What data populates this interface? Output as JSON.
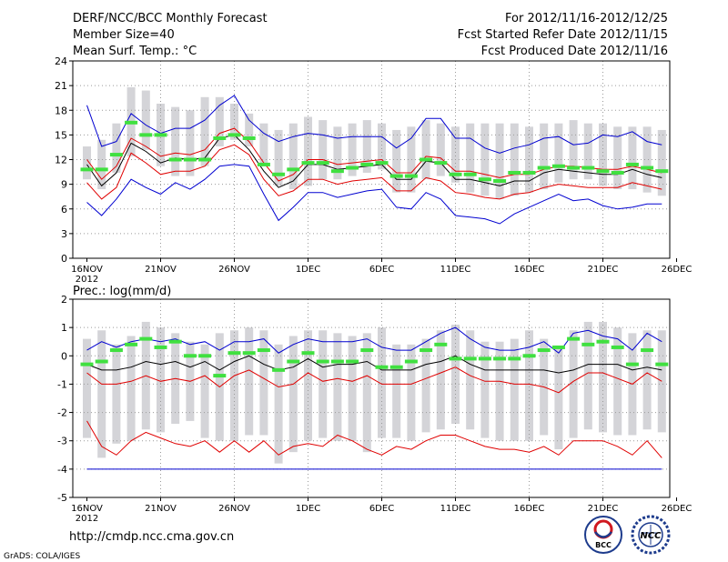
{
  "header": {
    "title": "DERF/NCC/BCC Monthly Forecast",
    "member_size": "Member Size=40",
    "period": "For 2012/11/16-2012/12/25",
    "fcst_started": "Fcst Started Refer Date 2012/11/15",
    "fcst_produced": "Fcst Produced Date 2012/11/16"
  },
  "footer": {
    "url": "http://cmdp.ncc.cma.gov.cn",
    "grads": "GrADS: COLA/IGES",
    "logo_bcc": "BCC",
    "logo_ncc": "NCC"
  },
  "colors": {
    "box": "#d4d4d8",
    "obs": "#40e040",
    "mean": "#000000",
    "inner": "#e00000",
    "outer": "#0000d0",
    "grid": "#9a9a9a"
  },
  "chart_data": [
    {
      "type": "line",
      "title": "Mean Surf. Temp.: °C",
      "ylim": [
        0,
        24
      ],
      "yticks": [
        "24",
        "21",
        "18",
        "15",
        "12",
        "9",
        "6",
        "3",
        "0"
      ],
      "xticks": [
        "16NOV",
        "21NOV",
        "26NOV",
        "1DEC",
        "6DEC",
        "11DEC",
        "16DEC",
        "21DEC",
        "26DEC"
      ],
      "xtick_year": "2012",
      "x": [
        1,
        2,
        3,
        4,
        5,
        6,
        7,
        8,
        9,
        10,
        11,
        12,
        13,
        14,
        15,
        16,
        17,
        18,
        19,
        20,
        21,
        22,
        23,
        24,
        25,
        26,
        27,
        28,
        29,
        30,
        31,
        32,
        33,
        34,
        35,
        36,
        37,
        38,
        39,
        40
      ],
      "box_low": [
        9.6,
        8.4,
        10.4,
        12.4,
        13.2,
        11.2,
        10.0,
        10.0,
        11.2,
        13.6,
        14.4,
        13.6,
        11.2,
        8.8,
        8.4,
        8.8,
        9.6,
        9.6,
        10.0,
        10.4,
        10.8,
        8.0,
        8.0,
        9.6,
        10.0,
        9.2,
        8.0,
        7.6,
        7.2,
        7.6,
        8.0,
        8.4,
        9.2,
        9.6,
        9.6,
        8.8,
        8.4,
        8.4,
        8.0,
        7.6
      ],
      "box_high": [
        13.6,
        14.4,
        16.4,
        20.8,
        20.4,
        18.8,
        18.4,
        18.0,
        19.6,
        19.6,
        18.8,
        17.6,
        16.4,
        15.6,
        16.4,
        17.2,
        16.8,
        16.0,
        16.4,
        16.8,
        16.4,
        15.6,
        16.0,
        16.8,
        16.4,
        16.0,
        16.4,
        16.4,
        16.4,
        16.4,
        16.0,
        16.4,
        16.4,
        16.8,
        16.4,
        16.4,
        16.0,
        16.0,
        16.0,
        15.6
      ],
      "series": [
        {
          "name": "obs",
          "values": [
            10.8,
            10.8,
            12.6,
            16.5,
            15.0,
            15.0,
            12.0,
            12.0,
            12.0,
            14.6,
            15.0,
            14.6,
            11.4,
            10.2,
            10.8,
            11.6,
            11.6,
            10.6,
            11.0,
            11.4,
            11.6,
            10.0,
            10.0,
            12.0,
            11.6,
            10.2,
            10.2,
            9.6,
            9.4,
            10.4,
            10.4,
            11.0,
            11.2,
            11.0,
            11.0,
            10.6,
            10.4,
            11.4,
            11.0,
            10.6
          ]
        },
        {
          "name": "mean",
          "values": [
            11.4,
            8.8,
            10.4,
            14.0,
            13.0,
            11.6,
            12.2,
            12.0,
            12.2,
            14.6,
            15.0,
            13.2,
            10.6,
            8.6,
            9.4,
            11.4,
            11.4,
            10.8,
            11.0,
            11.2,
            11.4,
            9.6,
            9.6,
            11.8,
            11.6,
            9.6,
            9.6,
            9.2,
            8.8,
            9.4,
            9.4,
            10.4,
            10.8,
            10.6,
            10.4,
            10.2,
            10.2,
            10.8,
            10.2,
            9.8
          ]
        },
        {
          "name": "upper",
          "values": [
            12.0,
            9.6,
            11.2,
            14.6,
            13.6,
            12.4,
            12.8,
            12.6,
            13.2,
            15.2,
            15.8,
            14.2,
            11.6,
            9.4,
            10.2,
            12.0,
            12.0,
            11.4,
            11.6,
            11.8,
            12.0,
            10.4,
            10.4,
            12.4,
            12.2,
            10.6,
            10.6,
            10.2,
            9.8,
            10.2,
            10.2,
            10.8,
            11.2,
            11.2,
            11.0,
            10.8,
            10.8,
            11.2,
            10.8,
            10.4
          ]
        },
        {
          "name": "lower",
          "values": [
            9.2,
            7.2,
            8.6,
            12.8,
            11.6,
            10.2,
            10.6,
            10.6,
            11.2,
            13.2,
            13.8,
            12.6,
            9.6,
            7.6,
            8.2,
            9.6,
            9.6,
            9.0,
            9.4,
            9.6,
            9.8,
            8.2,
            8.2,
            9.8,
            9.4,
            8.0,
            7.8,
            7.4,
            7.2,
            7.8,
            8.0,
            8.6,
            9.0,
            8.8,
            8.6,
            8.6,
            8.6,
            9.2,
            8.8,
            8.4
          ]
        },
        {
          "name": "max",
          "values": [
            18.6,
            13.6,
            14.2,
            17.6,
            16.2,
            15.2,
            15.8,
            15.8,
            16.8,
            18.6,
            19.8,
            16.8,
            15.2,
            14.2,
            14.8,
            15.2,
            15.0,
            14.6,
            14.8,
            14.8,
            14.8,
            13.4,
            14.6,
            17.0,
            17.0,
            14.6,
            14.6,
            13.4,
            12.8,
            13.4,
            13.8,
            14.6,
            14.8,
            13.8,
            14.0,
            15.0,
            14.8,
            15.4,
            14.2,
            13.8
          ]
        },
        {
          "name": "min",
          "values": [
            6.8,
            5.2,
            7.2,
            9.6,
            8.6,
            7.8,
            9.2,
            8.4,
            9.6,
            11.2,
            11.4,
            11.2,
            7.8,
            4.6,
            6.2,
            8.0,
            8.0,
            7.4,
            7.8,
            8.2,
            8.4,
            6.2,
            6.0,
            8.0,
            7.2,
            5.2,
            5.0,
            4.8,
            4.2,
            5.4,
            6.2,
            7.0,
            7.8,
            7.0,
            7.2,
            6.4,
            6.0,
            6.2,
            6.6,
            6.6
          ]
        }
      ]
    },
    {
      "type": "line",
      "title": "Prec.: log(mm/d)",
      "ylim": [
        -5,
        2
      ],
      "yticks": [
        "2",
        "1",
        "0",
        "-1",
        "-2",
        "-3",
        "-4",
        "-5"
      ],
      "xticks": [
        "16NOV",
        "21NOV",
        "26NOV",
        "1DEC",
        "6DEC",
        "11DEC",
        "16DEC",
        "21DEC",
        "26DEC"
      ],
      "xtick_year": "2012",
      "x": [
        1,
        2,
        3,
        4,
        5,
        6,
        7,
        8,
        9,
        10,
        11,
        12,
        13,
        14,
        15,
        16,
        17,
        18,
        19,
        20,
        21,
        22,
        23,
        24,
        25,
        26,
        27,
        28,
        29,
        30,
        31,
        32,
        33,
        34,
        35,
        36,
        37,
        38,
        39,
        40
      ],
      "box_low": [
        -2.9,
        -3.6,
        -3.1,
        -3.0,
        -2.6,
        -2.7,
        -2.4,
        -2.3,
        -2.9,
        -3.0,
        -3.0,
        -2.8,
        -2.8,
        -3.8,
        -3.4,
        -3.0,
        -2.9,
        -3.0,
        -3.0,
        -3.4,
        -2.9,
        -2.9,
        -3.0,
        -2.7,
        -2.6,
        -2.4,
        -2.6,
        -2.9,
        -3.0,
        -3.0,
        -3.0,
        -2.8,
        -3.3,
        -2.9,
        -2.6,
        -2.7,
        -2.8,
        -2.8,
        -2.6,
        -2.7
      ],
      "box_high": [
        0.6,
        0.9,
        0.4,
        0.7,
        1.2,
        1.0,
        0.8,
        0.5,
        0.4,
        0.8,
        0.9,
        1.0,
        0.9,
        0.4,
        0.7,
        0.9,
        0.9,
        0.8,
        0.7,
        0.8,
        1.0,
        0.4,
        0.4,
        0.6,
        0.9,
        1.1,
        0.9,
        0.5,
        0.5,
        0.6,
        0.9,
        0.6,
        0.3,
        0.9,
        1.2,
        1.2,
        1.0,
        0.8,
        0.9,
        0.9
      ],
      "series": [
        {
          "name": "obs",
          "values": [
            -0.3,
            -0.2,
            0.2,
            0.4,
            0.6,
            0.3,
            0.5,
            0.0,
            0.0,
            -0.7,
            0.1,
            0.1,
            0.2,
            -0.5,
            -0.2,
            0.1,
            -0.2,
            -0.2,
            -0.2,
            0.2,
            -0.4,
            -0.4,
            -0.2,
            0.2,
            0.4,
            -0.1,
            -0.1,
            -0.1,
            -0.1,
            -0.1,
            0.0,
            0.2,
            0.3,
            0.6,
            0.4,
            0.5,
            0.3,
            -0.3,
            0.2,
            -0.3
          ]
        },
        {
          "name": "mean",
          "values": [
            -0.3,
            -0.5,
            -0.5,
            -0.4,
            -0.2,
            -0.3,
            -0.2,
            -0.4,
            -0.2,
            -0.5,
            -0.2,
            0.0,
            -0.3,
            -0.5,
            -0.4,
            -0.1,
            -0.4,
            -0.3,
            -0.3,
            -0.2,
            -0.5,
            -0.5,
            -0.5,
            -0.3,
            -0.2,
            0.0,
            -0.3,
            -0.5,
            -0.5,
            -0.5,
            -0.5,
            -0.5,
            -0.6,
            -0.5,
            -0.3,
            -0.3,
            -0.3,
            -0.5,
            -0.4,
            -0.5
          ]
        },
        {
          "name": "upper",
          "values": [
            -0.6,
            -1.0,
            -1.0,
            -0.9,
            -0.7,
            -0.9,
            -0.8,
            -0.9,
            -0.7,
            -1.1,
            -0.7,
            -0.5,
            -0.8,
            -1.1,
            -1.0,
            -0.6,
            -0.9,
            -0.8,
            -0.9,
            -0.7,
            -1.0,
            -1.0,
            -1.0,
            -0.8,
            -0.6,
            -0.4,
            -0.7,
            -0.9,
            -0.9,
            -1.0,
            -1.0,
            -1.1,
            -1.3,
            -0.9,
            -0.6,
            -0.6,
            -0.8,
            -1.0,
            -0.6,
            -0.9
          ]
        },
        {
          "name": "lower",
          "values": [
            -2.3,
            -3.2,
            -3.5,
            -3.0,
            -2.7,
            -2.9,
            -3.1,
            -3.2,
            -3.0,
            -3.4,
            -3.0,
            -3.4,
            -3.0,
            -3.5,
            -3.2,
            -3.1,
            -3.2,
            -2.8,
            -3.0,
            -3.3,
            -3.5,
            -3.2,
            -3.3,
            -3.0,
            -2.8,
            -2.8,
            -3.0,
            -3.2,
            -3.3,
            -3.3,
            -3.4,
            -3.2,
            -3.5,
            -3.0,
            -3.0,
            -3.0,
            -3.2,
            -3.5,
            -3.0,
            -3.6
          ]
        },
        {
          "name": "max",
          "values": [
            0.2,
            0.5,
            0.3,
            0.5,
            0.6,
            0.5,
            0.6,
            0.4,
            0.5,
            0.2,
            0.5,
            0.5,
            0.6,
            0.1,
            0.4,
            0.6,
            0.5,
            0.5,
            0.5,
            0.6,
            0.3,
            0.2,
            0.2,
            0.5,
            0.8,
            1.0,
            0.6,
            0.3,
            0.2,
            0.2,
            0.3,
            0.5,
            0.1,
            0.8,
            0.9,
            0.7,
            0.6,
            0.2,
            0.8,
            0.5
          ]
        },
        {
          "name": "min",
          "values": [
            -4.0,
            -4.0,
            -4.0,
            -4.0,
            -4.0,
            -4.0,
            -4.0,
            -4.0,
            -4.0,
            -4.0,
            -4.0,
            -4.0,
            -4.0,
            -4.0,
            -4.0,
            -4.0,
            -4.0,
            -4.0,
            -4.0,
            -4.0,
            -4.0,
            -4.0,
            -4.0,
            -4.0,
            -4.0,
            -4.0,
            -4.0,
            -4.0,
            -4.0,
            -4.0,
            -4.0,
            -4.0,
            -4.0,
            -4.0,
            -4.0,
            -4.0,
            -4.0,
            -4.0,
            -4.0,
            -4.0
          ]
        }
      ]
    }
  ]
}
